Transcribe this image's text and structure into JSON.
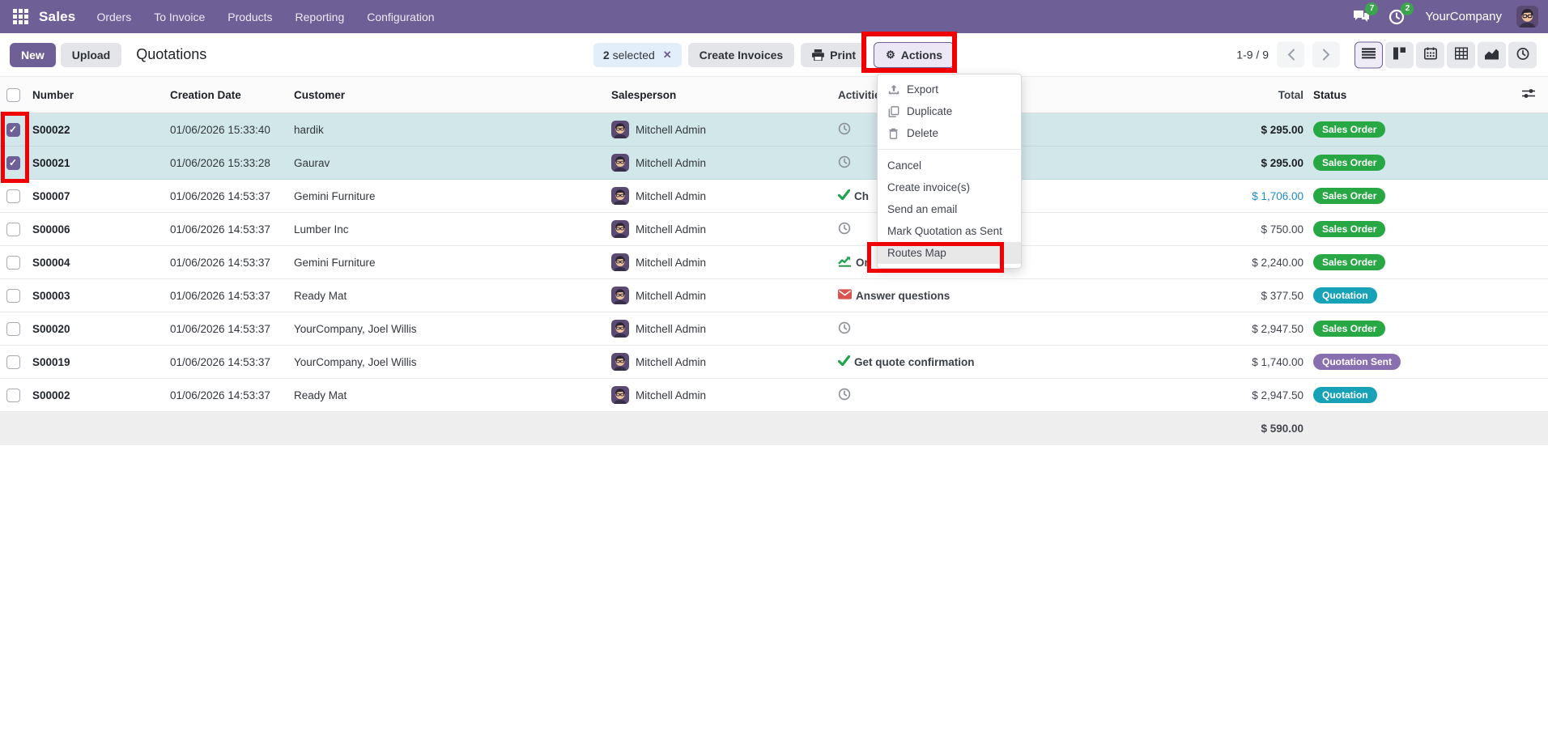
{
  "navbar": {
    "app_name": "Sales",
    "menus": [
      "Orders",
      "To Invoice",
      "Products",
      "Reporting",
      "Configuration"
    ],
    "messages_badge": "7",
    "activities_badge": "2",
    "company": "YourCompany"
  },
  "control_panel": {
    "new_label": "New",
    "upload_label": "Upload",
    "breadcrumb": "Quotations",
    "selected_count": "2",
    "selected_text": "selected",
    "create_invoices_label": "Create Invoices",
    "print_label": "Print",
    "actions_label": "Actions",
    "pager_text": "1-9 / 9",
    "view_switcher": [
      {
        "name": "list",
        "active": true
      },
      {
        "name": "kanban",
        "active": false
      },
      {
        "name": "calendar",
        "active": false
      },
      {
        "name": "pivot",
        "active": false
      },
      {
        "name": "graph",
        "active": false
      },
      {
        "name": "activity",
        "active": false
      }
    ]
  },
  "actions_menu": {
    "items": [
      {
        "label": "Export",
        "icon": "export"
      },
      {
        "label": "Duplicate",
        "icon": "duplicate"
      },
      {
        "label": "Delete",
        "icon": "delete"
      },
      {
        "divider": true
      },
      {
        "label": "Cancel"
      },
      {
        "label": "Create invoice(s)"
      },
      {
        "label": "Send an email"
      },
      {
        "label": "Mark Quotation as Sent"
      },
      {
        "label": "Routes Map",
        "highlighted": true
      }
    ]
  },
  "table": {
    "headers": [
      "Number",
      "Creation Date",
      "Customer",
      "Salesperson",
      "Activities",
      "Total",
      "Status"
    ],
    "rows": [
      {
        "number": "S00022",
        "date": "01/06/2026 15:33:40",
        "customer": "hardik",
        "salesperson": "Mitchell Admin",
        "activity_icon": "clock",
        "activity_label": "",
        "total": "$ 295.00",
        "status": "Sales Order",
        "checked": true,
        "selected": true,
        "total_blue": false
      },
      {
        "number": "S00021",
        "date": "01/06/2026 15:33:28",
        "customer": "Gaurav",
        "salesperson": "Mitchell Admin",
        "activity_icon": "clock",
        "activity_label": "",
        "total": "$ 295.00",
        "status": "Sales Order",
        "checked": true,
        "selected": true,
        "total_blue": false
      },
      {
        "number": "S00007",
        "date": "01/06/2026 14:53:37",
        "customer": "Gemini Furniture",
        "salesperson": "Mitchell Admin",
        "activity_icon": "check",
        "activity_label": "Ch",
        "total": "$ 1,706.00",
        "status": "Sales Order",
        "checked": false,
        "selected": false,
        "total_blue": true
      },
      {
        "number": "S00006",
        "date": "01/06/2026 14:53:37",
        "customer": "Lumber Inc",
        "salesperson": "Mitchell Admin",
        "activity_icon": "clock",
        "activity_label": "",
        "total": "$ 750.00",
        "status": "Sales Order",
        "checked": false,
        "selected": false,
        "total_blue": false
      },
      {
        "number": "S00004",
        "date": "01/06/2026 14:53:37",
        "customer": "Gemini Furniture",
        "salesperson": "Mitchell Admin",
        "activity_icon": "chart",
        "activity_label": "Or",
        "total": "$ 2,240.00",
        "status": "Sales Order",
        "checked": false,
        "selected": false,
        "total_blue": false
      },
      {
        "number": "S00003",
        "date": "01/06/2026 14:53:37",
        "customer": "Ready Mat",
        "salesperson": "Mitchell Admin",
        "activity_icon": "envelope",
        "activity_label": "Answer questions",
        "total": "$ 377.50",
        "status": "Quotation",
        "checked": false,
        "selected": false,
        "total_blue": false
      },
      {
        "number": "S00020",
        "date": "01/06/2026 14:53:37",
        "customer": "YourCompany, Joel Willis",
        "salesperson": "Mitchell Admin",
        "activity_icon": "clock",
        "activity_label": "",
        "total": "$ 2,947.50",
        "status": "Sales Order",
        "checked": false,
        "selected": false,
        "total_blue": false
      },
      {
        "number": "S00019",
        "date": "01/06/2026 14:53:37",
        "customer": "YourCompany, Joel Willis",
        "salesperson": "Mitchell Admin",
        "activity_icon": "check",
        "activity_label": "Get quote confirmation",
        "total": "$ 1,740.00",
        "status": "Quotation Sent",
        "checked": false,
        "selected": false,
        "total_blue": false
      },
      {
        "number": "S00002",
        "date": "01/06/2026 14:53:37",
        "customer": "Ready Mat",
        "salesperson": "Mitchell Admin",
        "activity_icon": "clock",
        "activity_label": "",
        "total": "$ 2,947.50",
        "status": "Quotation",
        "checked": false,
        "selected": false,
        "total_blue": false
      }
    ],
    "footer_total": "$ 590.00"
  },
  "status_colors": {
    "Sales Order": "#28a745",
    "Quotation": "#17a2b8",
    "Quotation Sent": "#8a6fb0"
  },
  "colors": {
    "navbar": "#6e5f96",
    "selected_row": "#d2e7ea",
    "annotation": "#f00000",
    "money_link": "#2088c9"
  }
}
